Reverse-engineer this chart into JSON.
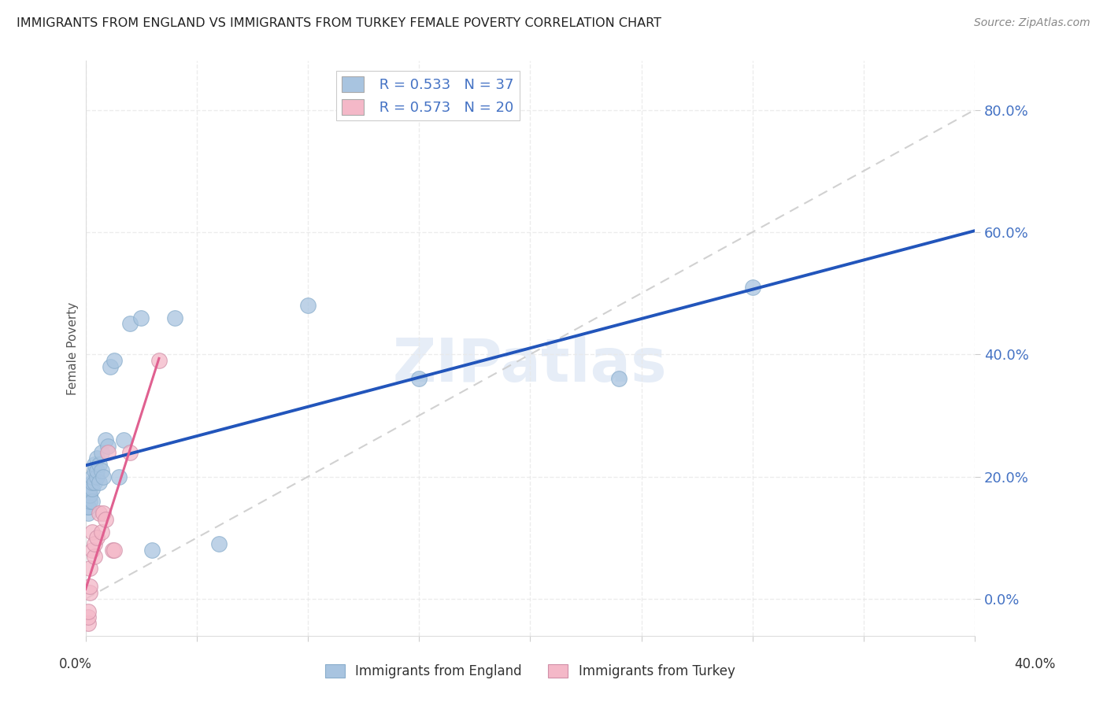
{
  "title": "IMMIGRANTS FROM ENGLAND VS IMMIGRANTS FROM TURKEY FEMALE POVERTY CORRELATION CHART",
  "source": "Source: ZipAtlas.com",
  "ylabel": "Female Poverty",
  "xlim": [
    0,
    0.4
  ],
  "ylim": [
    -0.06,
    0.88
  ],
  "england_color": "#a8c4e0",
  "turkey_color": "#f4b8c8",
  "england_line_color": "#2255bb",
  "turkey_line_color": "#e06090",
  "diagonal_color": "#cccccc",
  "watermark": "ZIPatlas",
  "england_x": [
    0.001,
    0.001,
    0.001,
    0.002,
    0.002,
    0.002,
    0.002,
    0.003,
    0.003,
    0.003,
    0.003,
    0.004,
    0.004,
    0.004,
    0.005,
    0.005,
    0.005,
    0.006,
    0.006,
    0.007,
    0.007,
    0.008,
    0.009,
    0.01,
    0.011,
    0.013,
    0.015,
    0.017,
    0.02,
    0.025,
    0.03,
    0.04,
    0.06,
    0.1,
    0.15,
    0.24,
    0.3
  ],
  "england_y": [
    0.14,
    0.15,
    0.15,
    0.16,
    0.17,
    0.17,
    0.18,
    0.16,
    0.18,
    0.19,
    0.2,
    0.19,
    0.21,
    0.22,
    0.2,
    0.21,
    0.23,
    0.19,
    0.22,
    0.21,
    0.24,
    0.2,
    0.26,
    0.25,
    0.38,
    0.39,
    0.2,
    0.26,
    0.45,
    0.46,
    0.08,
    0.46,
    0.09,
    0.48,
    0.36,
    0.36,
    0.51
  ],
  "turkey_x": [
    0.001,
    0.001,
    0.001,
    0.002,
    0.002,
    0.002,
    0.003,
    0.003,
    0.004,
    0.004,
    0.005,
    0.006,
    0.007,
    0.008,
    0.009,
    0.01,
    0.012,
    0.013,
    0.02,
    0.033
  ],
  "turkey_y": [
    -0.04,
    -0.03,
    -0.02,
    0.01,
    0.02,
    0.05,
    0.08,
    0.11,
    0.07,
    0.09,
    0.1,
    0.14,
    0.11,
    0.14,
    0.13,
    0.24,
    0.08,
    0.08,
    0.24,
    0.39
  ],
  "bg_color": "#ffffff",
  "grid_color": "#e8e8e8",
  "ytick_vals": [
    0.0,
    0.2,
    0.4,
    0.6,
    0.8
  ],
  "ytick_labels": [
    "0.0%",
    "20.0%",
    "40.0%",
    "60.0%",
    "80.0%"
  ],
  "xtick_vals": [
    0.0,
    0.05,
    0.1,
    0.15,
    0.2,
    0.25,
    0.3,
    0.35,
    0.4
  ],
  "legend1_text": " R = 0.533   N = 37",
  "legend2_text": " R = 0.573   N = 20"
}
